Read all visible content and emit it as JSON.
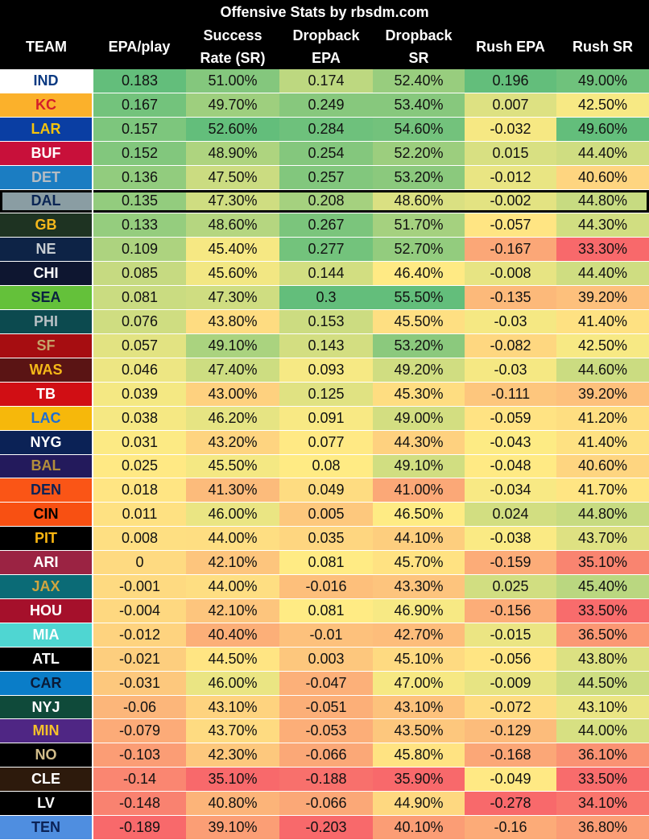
{
  "title": "Offensive Stats by rbsdm.com",
  "chart_data": {
    "type": "table",
    "title": "Offensive Stats by rbsdm.com",
    "headers": [
      [
        "TEAM"
      ],
      [
        "EPA/play"
      ],
      [
        "Success",
        "Rate (SR)"
      ],
      [
        "Dropback",
        "EPA"
      ],
      [
        "Dropback",
        "SR"
      ],
      [
        "Rush EPA"
      ],
      [
        "Rush SR"
      ]
    ],
    "highlighted_team": "DAL",
    "rows": [
      {
        "team": "IND",
        "bg": "#ffffff",
        "fg": "#0b3a82",
        "values": [
          "0.183",
          "51.00%",
          "0.174",
          "52.40%",
          "0.196",
          "49.00%"
        ]
      },
      {
        "team": "KC",
        "bg": "#fbb12b",
        "fg": "#d41f2a",
        "values": [
          "0.167",
          "49.70%",
          "0.249",
          "53.40%",
          "0.007",
          "42.50%"
        ]
      },
      {
        "team": "LAR",
        "bg": "#0a3ea3",
        "fg": "#f5c30c",
        "values": [
          "0.157",
          "52.60%",
          "0.284",
          "54.60%",
          "-0.032",
          "49.60%"
        ]
      },
      {
        "team": "BUF",
        "bg": "#c8103a",
        "fg": "#ffffff",
        "values": [
          "0.152",
          "48.90%",
          "0.254",
          "52.20%",
          "0.015",
          "44.40%"
        ]
      },
      {
        "team": "DET",
        "bg": "#1b7dc2",
        "fg": "#b5bcc3",
        "values": [
          "0.136",
          "47.50%",
          "0.257",
          "53.20%",
          "-0.012",
          "40.60%"
        ]
      },
      {
        "team": "DAL",
        "bg": "#8a9da3",
        "fg": "#0a2554",
        "values": [
          "0.135",
          "47.30%",
          "0.208",
          "48.60%",
          "-0.002",
          "44.80%"
        ]
      },
      {
        "team": "GB",
        "bg": "#1e3322",
        "fg": "#f5b81b",
        "values": [
          "0.133",
          "48.60%",
          "0.267",
          "51.70%",
          "-0.057",
          "44.30%"
        ]
      },
      {
        "team": "NE",
        "bg": "#0d2346",
        "fg": "#c7cdd2",
        "values": [
          "0.109",
          "45.40%",
          "0.277",
          "52.70%",
          "-0.167",
          "33.30%"
        ]
      },
      {
        "team": "CHI",
        "bg": "#0e1630",
        "fg": "#ffffff",
        "values": [
          "0.085",
          "45.60%",
          "0.144",
          "46.40%",
          "-0.008",
          "44.40%"
        ]
      },
      {
        "team": "SEA",
        "bg": "#64c13a",
        "fg": "#0a2240",
        "values": [
          "0.081",
          "47.30%",
          "0.3",
          "55.50%",
          "-0.135",
          "39.20%"
        ]
      },
      {
        "team": "PHI",
        "bg": "#0c4a4f",
        "fg": "#b8c0c4",
        "values": [
          "0.076",
          "43.80%",
          "0.153",
          "45.50%",
          "-0.03",
          "41.40%"
        ]
      },
      {
        "team": "SF",
        "bg": "#a60d11",
        "fg": "#c5a56a",
        "values": [
          "0.057",
          "49.10%",
          "0.143",
          "53.20%",
          "-0.082",
          "42.50%"
        ]
      },
      {
        "team": "WAS",
        "bg": "#5a1414",
        "fg": "#f5b819",
        "values": [
          "0.046",
          "47.40%",
          "0.093",
          "49.20%",
          "-0.03",
          "44.60%"
        ]
      },
      {
        "team": "TB",
        "bg": "#d10e14",
        "fg": "#ffffff",
        "values": [
          "0.039",
          "43.00%",
          "0.125",
          "45.30%",
          "-0.111",
          "39.20%"
        ]
      },
      {
        "team": "LAC",
        "bg": "#f6b80b",
        "fg": "#1e6ed4",
        "values": [
          "0.038",
          "46.20%",
          "0.091",
          "49.00%",
          "-0.059",
          "41.20%"
        ]
      },
      {
        "team": "NYG",
        "bg": "#0b2256",
        "fg": "#ffffff",
        "values": [
          "0.031",
          "43.20%",
          "0.077",
          "44.30%",
          "-0.043",
          "41.40%"
        ]
      },
      {
        "team": "BAL",
        "bg": "#231a5c",
        "fg": "#b38e3b",
        "values": [
          "0.025",
          "45.50%",
          "0.08",
          "49.10%",
          "-0.048",
          "40.60%"
        ]
      },
      {
        "team": "DEN",
        "bg": "#fa5516",
        "fg": "#0b2256",
        "values": [
          "0.018",
          "41.30%",
          "0.049",
          "41.00%",
          "-0.034",
          "41.70%"
        ]
      },
      {
        "team": "CIN",
        "bg": "#f85012",
        "fg": "#000000",
        "values": [
          "0.011",
          "46.00%",
          "0.005",
          "46.50%",
          "0.024",
          "44.80%"
        ]
      },
      {
        "team": "PIT",
        "bg": "#000000",
        "fg": "#fcb711",
        "values": [
          "0.008",
          "44.00%",
          "0.035",
          "44.10%",
          "-0.038",
          "43.70%"
        ]
      },
      {
        "team": "ARI",
        "bg": "#9b2343",
        "fg": "#ffffff",
        "values": [
          "0",
          "42.10%",
          "0.081",
          "45.70%",
          "-0.159",
          "35.10%"
        ]
      },
      {
        "team": "JAX",
        "bg": "#0b6b76",
        "fg": "#cfa540",
        "values": [
          "-0.001",
          "44.00%",
          "-0.016",
          "43.30%",
          "0.025",
          "45.40%"
        ]
      },
      {
        "team": "HOU",
        "bg": "#a5102b",
        "fg": "#ffffff",
        "values": [
          "-0.004",
          "42.10%",
          "0.081",
          "46.90%",
          "-0.156",
          "33.50%"
        ]
      },
      {
        "team": "MIA",
        "bg": "#4fd6d2",
        "fg": "#ffffff",
        "values": [
          "-0.012",
          "40.40%",
          "-0.01",
          "42.70%",
          "-0.015",
          "36.50%"
        ]
      },
      {
        "team": "ATL",
        "bg": "#000000",
        "fg": "#ffffff",
        "values": [
          "-0.021",
          "44.50%",
          "0.003",
          "45.10%",
          "-0.056",
          "43.80%"
        ]
      },
      {
        "team": "CAR",
        "bg": "#0a7dc8",
        "fg": "#0a1a36",
        "values": [
          "-0.031",
          "46.00%",
          "-0.047",
          "47.00%",
          "-0.009",
          "44.50%"
        ]
      },
      {
        "team": "NYJ",
        "bg": "#0f4a3a",
        "fg": "#ffffff",
        "values": [
          "-0.06",
          "43.10%",
          "-0.051",
          "43.10%",
          "-0.072",
          "43.10%"
        ]
      },
      {
        "team": "MIN",
        "bg": "#4f2684",
        "fg": "#f5c12a",
        "values": [
          "-0.079",
          "43.70%",
          "-0.053",
          "43.50%",
          "-0.129",
          "44.00%"
        ]
      },
      {
        "team": "NO",
        "bg": "#000000",
        "fg": "#d2bd8a",
        "values": [
          "-0.103",
          "42.30%",
          "-0.066",
          "45.80%",
          "-0.168",
          "36.10%"
        ]
      },
      {
        "team": "CLE",
        "bg": "#2d1a0c",
        "fg": "#ffffff",
        "values": [
          "-0.14",
          "35.10%",
          "-0.188",
          "35.90%",
          "-0.049",
          "33.50%"
        ]
      },
      {
        "team": "LV",
        "bg": "#000000",
        "fg": "#ffffff",
        "values": [
          "-0.148",
          "40.80%",
          "-0.066",
          "44.90%",
          "-0.278",
          "34.10%"
        ]
      },
      {
        "team": "TEN",
        "bg": "#4f8ee0",
        "fg": "#0b2256",
        "values": [
          "-0.189",
          "39.10%",
          "-0.203",
          "40.10%",
          "-0.16",
          "36.80%"
        ]
      }
    ]
  }
}
